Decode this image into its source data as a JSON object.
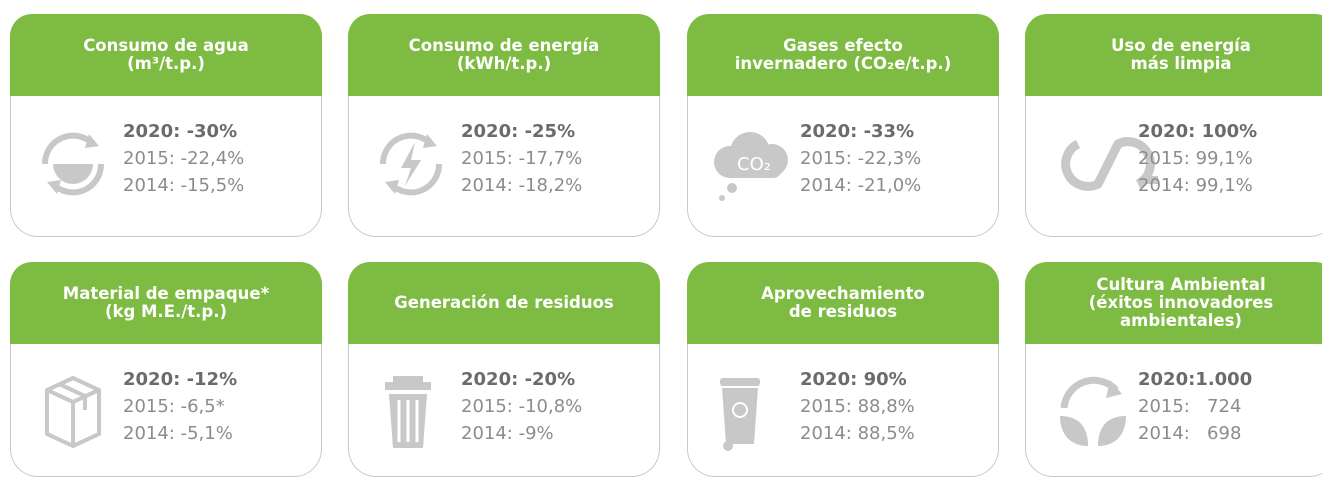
{
  "cards": [
    {
      "title_lines": [
        "Consumo de agua",
        "(m³/t.p.)"
      ],
      "lines": [
        "2020: -30%",
        "2015: -22,4%",
        "2014: -15,5%"
      ]
    },
    {
      "title_lines": [
        "Consumo de energía",
        "(kWh/t.p.)"
      ],
      "lines": [
        "2020: -25%",
        "2015: -17,7%",
        "2014: -18,2%"
      ]
    },
    {
      "title_lines": [
        "Gases efecto",
        "invernadero (CO₂e/t.p.)"
      ],
      "lines": [
        "2020: -33%",
        "2015: -22,3%",
        "2014: -21,0%"
      ],
      "icon_label": "CO₂"
    },
    {
      "title_lines": [
        "Uso de energía",
        "más limpia"
      ],
      "lines": [
        "2020: 100%",
        "2015: 99,1%",
        "2014: 99,1%"
      ]
    },
    {
      "title_lines": [
        "Material de empaque*",
        "(kg M.E./t.p.)"
      ],
      "lines": [
        "2020: -12%",
        "2015: -6,5*",
        "2014: -5,1%"
      ]
    },
    {
      "title_lines": [
        "Generación de residuos"
      ],
      "lines": [
        "2020: -20%",
        "2015: -10,8%",
        "2014: -9%"
      ]
    },
    {
      "title_lines": [
        "Aprovechamiento",
        "de residuos"
      ],
      "lines": [
        "2020: 90%",
        "2015: 88,8%",
        "2014: 88,5%"
      ]
    },
    {
      "title_lines": [
        "Cultura Ambiental",
        "(éxitos innovadores",
        "ambientales)"
      ],
      "lines": [
        "2020:1.000",
        "2015:   724",
        "2014:   698"
      ]
    }
  ]
}
